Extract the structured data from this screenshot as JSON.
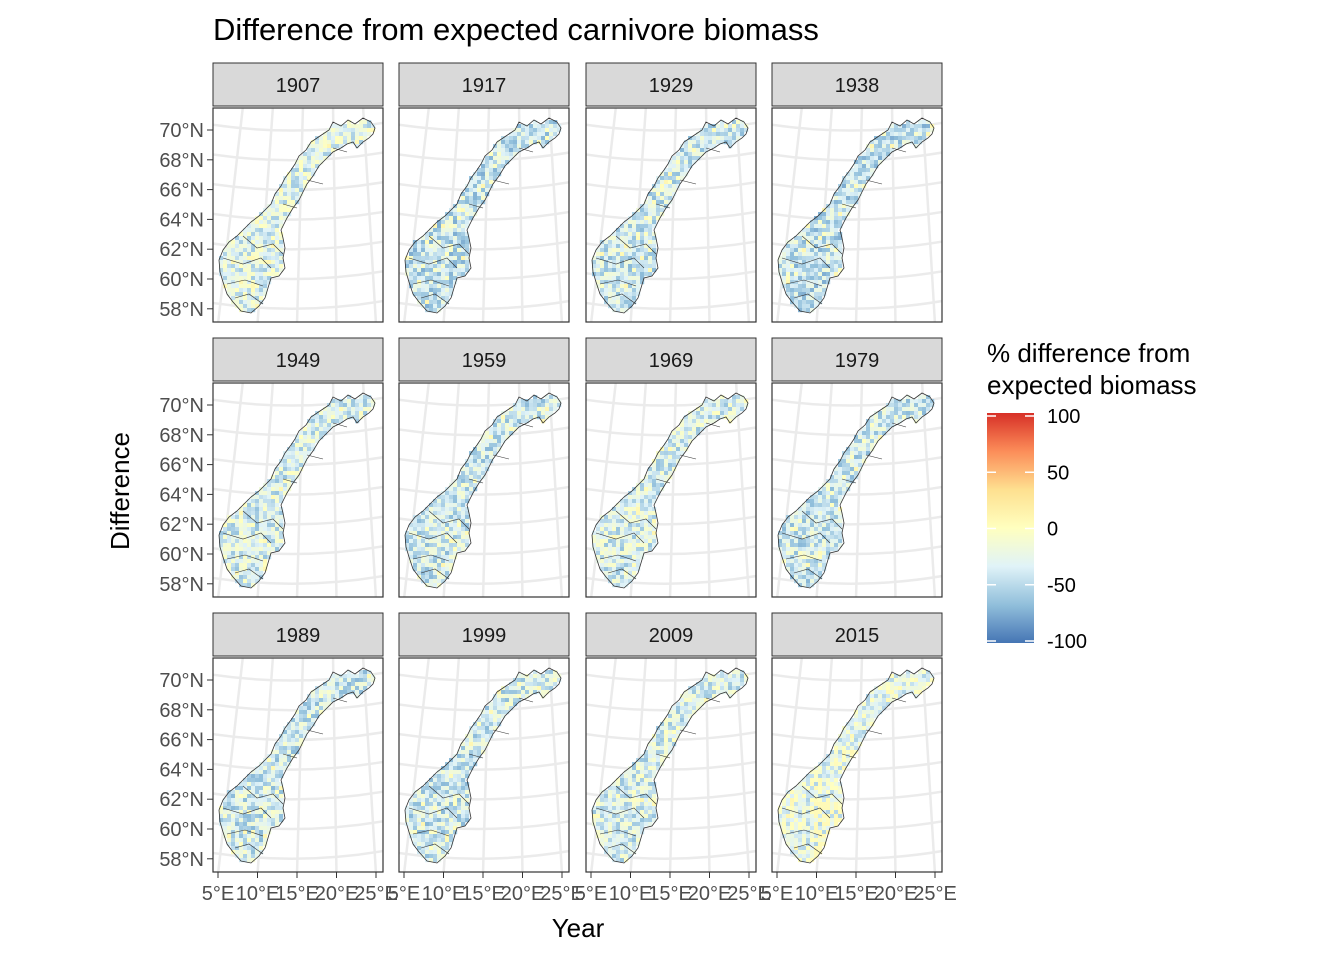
{
  "chart_data": {
    "type": "map-facets",
    "title": "Difference from expected carnivore biomass",
    "xlabel": "Year",
    "ylabel": "Difference",
    "panels": [
      "1907",
      "1917",
      "1929",
      "1938",
      "1949",
      "1959",
      "1969",
      "1979",
      "1989",
      "1999",
      "2009",
      "2015"
    ],
    "lat_ticks": [
      "70°N",
      "68°N",
      "66°N",
      "64°N",
      "62°N",
      "60°N",
      "58°N"
    ],
    "lat_values": [
      70,
      68,
      66,
      64,
      62,
      60,
      58
    ],
    "lon_ticks": [
      "5°E",
      "10°E",
      "15°E",
      "20°E",
      "25°E"
    ],
    "lon_values": [
      5,
      10,
      15,
      20,
      25
    ],
    "grid": true,
    "legend": {
      "title_line1": "% difference from",
      "title_line2": "expected biomass",
      "ticks": [
        "100",
        "50",
        "0",
        "-50",
        "-100"
      ],
      "tick_values": [
        100,
        50,
        0,
        -50,
        -100
      ],
      "range": [
        -100,
        100
      ],
      "colors": [
        "#4575b4",
        "#91bfdb",
        "#e0f3f8",
        "#ffffbf",
        "#fee090",
        "#fc8d59",
        "#d73027"
      ],
      "placement": "right"
    },
    "panel_fill_tendency": {
      "1907": -30,
      "1917": -45,
      "1929": -40,
      "1938": -45,
      "1949": -35,
      "1959": -40,
      "1969": -35,
      "1979": -40,
      "1989": -40,
      "1999": -40,
      "2009": -35,
      "2015": -25
    }
  }
}
